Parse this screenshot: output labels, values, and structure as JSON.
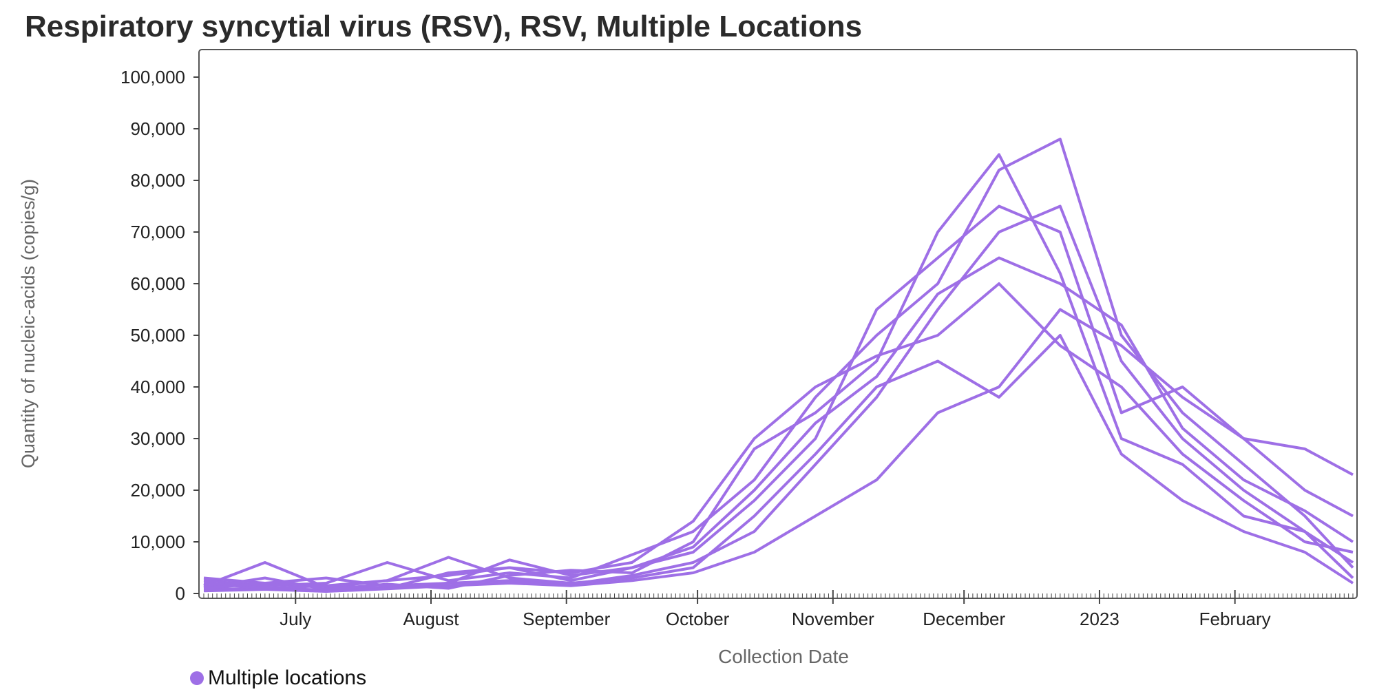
{
  "colors": {
    "series": "#9E6FE6",
    "axis": "#444444",
    "frame": "#555555",
    "axis_title": "#666666"
  },
  "chart_data": {
    "type": "line",
    "title": "Respiratory syncytial virus (RSV), RSV, Multiple Locations",
    "xlabel": "Collection Date",
    "ylabel": "Quantity of nucleic-acids (copies/g)",
    "x_range": [
      "2022-06-10",
      "2023-02-28"
    ],
    "ylim": [
      0,
      100000
    ],
    "y_ticks": [
      0,
      10000,
      20000,
      30000,
      40000,
      50000,
      60000,
      70000,
      80000,
      90000,
      100000
    ],
    "y_tick_labels": [
      "0",
      "10,000",
      "20,000",
      "30,000",
      "40,000",
      "50,000",
      "60,000",
      "70,000",
      "80,000",
      "90,000",
      "100,000"
    ],
    "x_ticks": [
      "2022-07-01",
      "2022-08-01",
      "2022-09-01",
      "2022-10-01",
      "2022-11-01",
      "2022-12-01",
      "2023-01-01",
      "2023-02-01"
    ],
    "x_tick_labels": [
      "July",
      "August",
      "September",
      "October",
      "November",
      "December",
      "2023",
      "February"
    ],
    "grid": false,
    "legend_position": "bottom-left",
    "legend": [
      {
        "label": "Multiple locations"
      }
    ],
    "series": [
      {
        "x": [
          "2022-06-10",
          "2022-06-24",
          "2022-07-08",
          "2022-07-22",
          "2022-08-05",
          "2022-08-19",
          "2022-09-02",
          "2022-09-16",
          "2022-09-30",
          "2022-10-14",
          "2022-10-28",
          "2022-11-11",
          "2022-11-25",
          "2022-12-09",
          "2022-12-23",
          "2023-01-06",
          "2023-01-20",
          "2023-02-03",
          "2023-02-17",
          "2023-02-28"
        ],
        "values": [
          1500,
          6000,
          1200,
          2500,
          3500,
          5000,
          4000,
          6000,
          14000,
          30000,
          40000,
          46000,
          50000,
          60000,
          48000,
          40000,
          27000,
          18000,
          10000,
          8000
        ]
      },
      {
        "x": [
          "2022-06-10",
          "2022-06-24",
          "2022-07-08",
          "2022-07-22",
          "2022-08-05",
          "2022-08-19",
          "2022-09-02",
          "2022-09-16",
          "2022-09-30",
          "2022-10-14",
          "2022-10-28",
          "2022-11-11",
          "2022-11-25",
          "2022-12-09",
          "2022-12-23",
          "2023-01-06",
          "2023-01-20",
          "2023-02-03",
          "2023-02-17",
          "2023-02-28"
        ],
        "values": [
          2500,
          1500,
          2000,
          6000,
          2500,
          4000,
          3000,
          7500,
          12000,
          22000,
          38000,
          50000,
          60000,
          82000,
          88000,
          50000,
          35000,
          25000,
          15000,
          5000
        ]
      },
      {
        "x": [
          "2022-06-10",
          "2022-06-24",
          "2022-07-08",
          "2022-07-22",
          "2022-08-05",
          "2022-08-19",
          "2022-09-02",
          "2022-09-16",
          "2022-09-30",
          "2022-10-14",
          "2022-10-28",
          "2022-11-11",
          "2022-11-25",
          "2022-12-09",
          "2022-12-23",
          "2023-01-06",
          "2023-01-20",
          "2023-02-03",
          "2023-02-17",
          "2023-02-28"
        ],
        "values": [
          800,
          1000,
          700,
          1200,
          2000,
          2500,
          1800,
          3500,
          6000,
          12000,
          25000,
          38000,
          55000,
          70000,
          75000,
          45000,
          30000,
          20000,
          12000,
          6000
        ]
      },
      {
        "x": [
          "2022-06-10",
          "2022-06-24",
          "2022-07-08",
          "2022-07-22",
          "2022-08-05",
          "2022-08-19",
          "2022-09-02",
          "2022-09-16",
          "2022-09-30",
          "2022-10-14",
          "2022-10-28",
          "2022-11-11",
          "2022-11-25",
          "2022-12-09",
          "2022-12-23",
          "2023-01-06",
          "2023-01-20",
          "2023-02-03",
          "2023-02-17",
          "2023-02-28"
        ],
        "values": [
          3000,
          2000,
          1500,
          1000,
          4000,
          5000,
          2500,
          5000,
          8000,
          18000,
          30000,
          55000,
          65000,
          75000,
          70000,
          35000,
          40000,
          30000,
          28000,
          23000
        ]
      },
      {
        "x": [
          "2022-06-10",
          "2022-06-24",
          "2022-07-08",
          "2022-07-22",
          "2022-08-05",
          "2022-08-19",
          "2022-09-02",
          "2022-09-16",
          "2022-09-30",
          "2022-10-14",
          "2022-10-28",
          "2022-11-11",
          "2022-11-25",
          "2022-12-09",
          "2022-12-23",
          "2023-01-06",
          "2023-01-20",
          "2023-02-03",
          "2023-02-17",
          "2023-02-28"
        ],
        "values": [
          500,
          800,
          400,
          900,
          1500,
          2000,
          1500,
          2500,
          4000,
          8000,
          15000,
          22000,
          35000,
          40000,
          55000,
          48000,
          38000,
          30000,
          20000,
          15000
        ]
      },
      {
        "x": [
          "2022-06-10",
          "2022-06-24",
          "2022-07-08",
          "2022-07-22",
          "2022-08-05",
          "2022-08-19",
          "2022-09-02",
          "2022-09-16",
          "2022-09-30",
          "2022-10-14",
          "2022-10-28",
          "2022-11-11",
          "2022-11-25",
          "2022-12-09",
          "2022-12-23",
          "2023-01-06",
          "2023-01-20",
          "2023-02-03",
          "2023-02-17",
          "2023-02-28"
        ],
        "values": [
          1200,
          3000,
          800,
          1800,
          1000,
          3500,
          4500,
          4000,
          10000,
          28000,
          35000,
          45000,
          70000,
          85000,
          62000,
          30000,
          25000,
          15000,
          12000,
          3000
        ]
      },
      {
        "x": [
          "2022-06-10",
          "2022-06-24",
          "2022-07-08",
          "2022-07-22",
          "2022-08-05",
          "2022-08-19",
          "2022-09-02",
          "2022-09-16",
          "2022-09-30",
          "2022-10-14",
          "2022-10-28",
          "2022-11-11",
          "2022-11-25",
          "2022-12-09",
          "2022-12-23",
          "2023-01-06",
          "2023-01-20",
          "2023-02-03",
          "2023-02-17",
          "2023-02-28"
        ],
        "values": [
          2000,
          1000,
          1500,
          2500,
          7000,
          3000,
          2000,
          3000,
          5000,
          15000,
          27000,
          40000,
          45000,
          38000,
          50000,
          27000,
          18000,
          12000,
          8000,
          2000
        ]
      },
      {
        "x": [
          "2022-06-10",
          "2022-06-24",
          "2022-07-08",
          "2022-07-22",
          "2022-08-05",
          "2022-08-19",
          "2022-09-02",
          "2022-09-16",
          "2022-09-30",
          "2022-10-14",
          "2022-10-28",
          "2022-11-11",
          "2022-11-25",
          "2022-12-09",
          "2022-12-23",
          "2023-01-06",
          "2023-01-20",
          "2023-02-03",
          "2023-02-17",
          "2023-02-28"
        ],
        "values": [
          1000,
          2000,
          3000,
          1500,
          2000,
          6500,
          3500,
          5000,
          9000,
          20000,
          33000,
          42000,
          58000,
          65000,
          60000,
          52000,
          32000,
          22000,
          16000,
          10000
        ]
      }
    ]
  }
}
